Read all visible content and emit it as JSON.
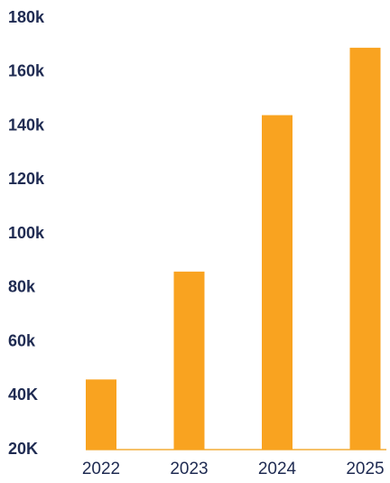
{
  "chart_data": {
    "type": "bar",
    "title": "",
    "xlabel": "",
    "ylabel": "",
    "categories": [
      "2022",
      "2023",
      "2024",
      "2025"
    ],
    "values": [
      46000,
      86000,
      144000,
      169000
    ],
    "ylim": [
      20000,
      180000
    ],
    "yticks": [
      20000,
      40000,
      60000,
      80000,
      100000,
      120000,
      140000,
      160000,
      180000
    ],
    "ytick_labels": [
      "20K",
      "40K",
      "60k",
      "80k",
      "100k",
      "120k",
      "140k",
      "160k",
      "180k"
    ],
    "grid": false,
    "legend": "none",
    "colors": {
      "bar": "#f9a320",
      "baseline": "#f6c169",
      "text": "#1f2b52"
    }
  }
}
